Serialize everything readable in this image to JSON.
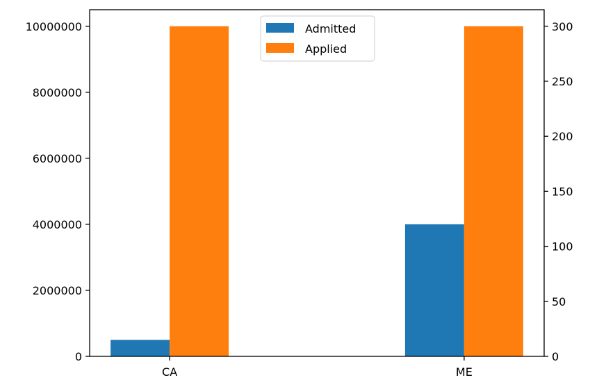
{
  "chart_data": {
    "type": "bar",
    "categories": [
      "CA",
      "ME"
    ],
    "series": [
      {
        "name": "Admitted",
        "color": "#1f77b4",
        "axis": "left",
        "values": [
          500000,
          4000000
        ]
      },
      {
        "name": "Applied",
        "color": "#ff7f0e",
        "axis": "right",
        "values": [
          300,
          300
        ]
      }
    ],
    "y_left": {
      "ylim": [
        0,
        10500000
      ],
      "ticks": [
        0,
        2000000,
        4000000,
        6000000,
        8000000,
        10000000
      ],
      "tick_labels": [
        "0",
        "2000000",
        "4000000",
        "6000000",
        "8000000",
        "10000000"
      ]
    },
    "y_right": {
      "ylim": [
        0,
        315
      ],
      "ticks": [
        0,
        50,
        100,
        150,
        200,
        250,
        300
      ],
      "tick_labels": [
        "0",
        "50",
        "100",
        "150",
        "200",
        "250",
        "300"
      ]
    },
    "title": "",
    "xlabel": "",
    "ylabel": "",
    "grid": false,
    "legend": {
      "position": "upper-center",
      "entries": [
        "Admitted",
        "Applied"
      ]
    }
  }
}
